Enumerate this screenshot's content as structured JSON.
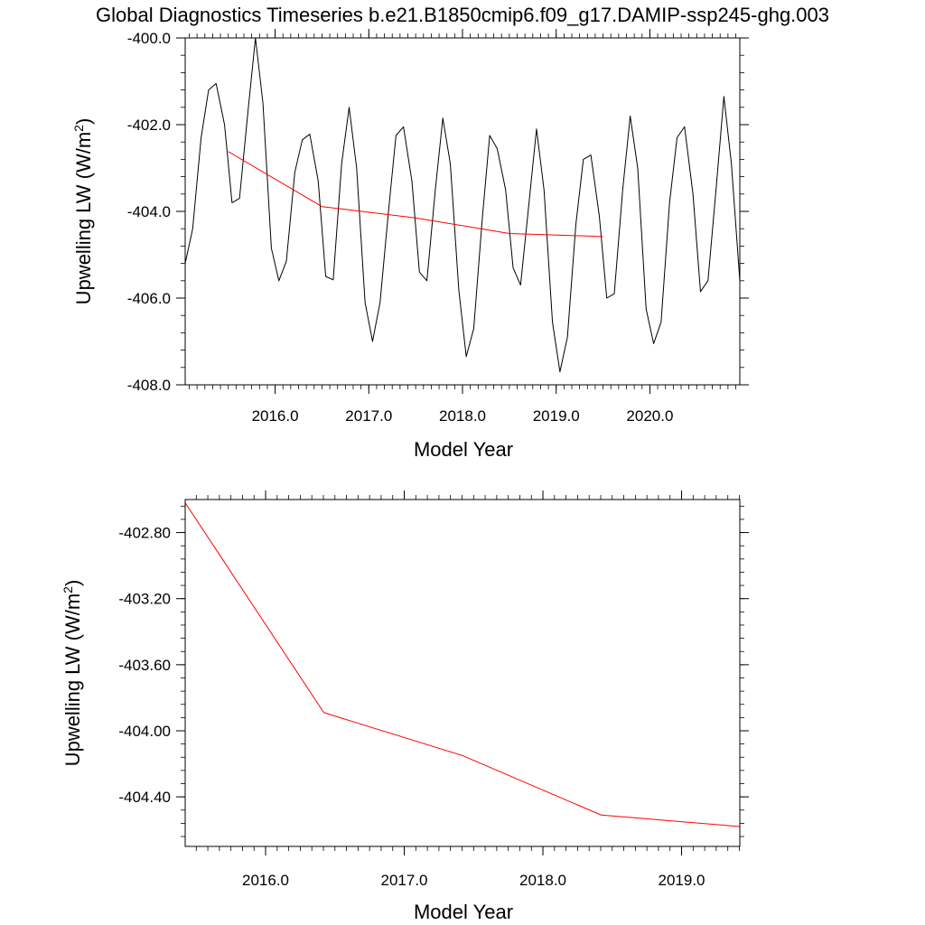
{
  "title": "Global Diagnostics Timeseries b.e21.B1850cmip6.f09_g17.DAMIP-ssp245-ghg.003",
  "chart_data": [
    {
      "type": "line",
      "xlabel": "Model Year",
      "ylabel": "Upwelling LW (W/m",
      "ylabel_sup": "2",
      "ylabel_close": ")",
      "xlim": [
        2015.04,
        2020.96
      ],
      "ylim": [
        -408.0,
        -400.0
      ],
      "xticks": [
        2016.0,
        2017.0,
        2018.0,
        2019.0,
        2020.0
      ],
      "xtick_labels": [
        "2016.0",
        "2017.0",
        "2018.0",
        "2019.0",
        "2020.0"
      ],
      "yticks": [
        -408.0,
        -406.0,
        -404.0,
        -402.0,
        -400.0
      ],
      "ytick_labels": [
        "-408.0",
        "-406.0",
        "-404.0",
        "-402.0",
        "-400.0"
      ],
      "series": [
        {
          "color": "#000000",
          "x": [
            2015.04,
            2015.12,
            2015.21,
            2015.29,
            2015.37,
            2015.46,
            2015.54,
            2015.62,
            2015.71,
            2015.79,
            2015.87,
            2015.96,
            2016.04,
            2016.12,
            2016.21,
            2016.29,
            2016.37,
            2016.46,
            2016.54,
            2016.62,
            2016.71,
            2016.79,
            2016.87,
            2016.96,
            2017.04,
            2017.12,
            2017.21,
            2017.29,
            2017.37,
            2017.46,
            2017.54,
            2017.62,
            2017.71,
            2017.79,
            2017.87,
            2017.96,
            2018.04,
            2018.12,
            2018.21,
            2018.29,
            2018.37,
            2018.46,
            2018.54,
            2018.62,
            2018.71,
            2018.79,
            2018.87,
            2018.96,
            2019.04,
            2019.12,
            2019.21,
            2019.29,
            2019.37,
            2019.46,
            2019.54,
            2019.62,
            2019.71,
            2019.79,
            2019.87,
            2019.96,
            2020.04,
            2020.12,
            2020.21,
            2020.29,
            2020.37,
            2020.46,
            2020.54,
            2020.62,
            2020.71,
            2020.79,
            2020.87,
            2020.96
          ],
          "values": [
            -405.2,
            -404.4,
            -402.3,
            -401.2,
            -401.05,
            -402.0,
            -403.8,
            -403.7,
            -401.7,
            -400.0,
            -401.5,
            -404.85,
            -405.6,
            -405.15,
            -403.1,
            -402.35,
            -402.22,
            -403.3,
            -405.5,
            -405.58,
            -402.9,
            -401.6,
            -403.0,
            -406.1,
            -407.0,
            -406.1,
            -404.0,
            -402.25,
            -402.05,
            -403.3,
            -405.4,
            -405.6,
            -403.5,
            -401.85,
            -402.9,
            -405.8,
            -407.35,
            -406.7,
            -404.2,
            -402.25,
            -402.55,
            -403.5,
            -405.3,
            -405.7,
            -403.8,
            -402.1,
            -403.5,
            -406.55,
            -407.7,
            -406.9,
            -404.3,
            -402.8,
            -402.7,
            -404.1,
            -406.0,
            -405.9,
            -403.5,
            -401.8,
            -403.0,
            -406.25,
            -407.05,
            -406.55,
            -403.8,
            -402.3,
            -402.05,
            -403.6,
            -405.85,
            -405.6,
            -403.4,
            -401.35,
            -402.9,
            -405.6
          ]
        },
        {
          "color": "#ff0000",
          "x": [
            2015.5,
            2016.5,
            2017.5,
            2018.5,
            2019.5
          ],
          "values": [
            -402.62,
            -403.89,
            -404.15,
            -404.51,
            -404.58
          ]
        }
      ]
    },
    {
      "type": "line",
      "xlabel": "Model Year",
      "ylabel": "Upwelling LW (W/m",
      "ylabel_sup": "2",
      "ylabel_close": ")",
      "xlim": [
        2015.42,
        2019.42
      ],
      "ylim": [
        -404.7,
        -402.6
      ],
      "xticks": [
        2016.0,
        2017.0,
        2018.0,
        2019.0
      ],
      "xtick_labels": [
        "2016.0",
        "2017.0",
        "2018.0",
        "2019.0"
      ],
      "yticks": [
        -404.4,
        -404.0,
        -403.6,
        -403.2,
        -402.8
      ],
      "ytick_labels": [
        "-404.40",
        "-404.00",
        "-403.60",
        "-403.20",
        "-402.80"
      ],
      "series": [
        {
          "color": "#ff0000",
          "x": [
            2015.42,
            2016.42,
            2017.42,
            2018.42,
            2019.42
          ],
          "values": [
            -402.62,
            -403.89,
            -404.15,
            -404.51,
            -404.58
          ]
        }
      ]
    }
  ]
}
